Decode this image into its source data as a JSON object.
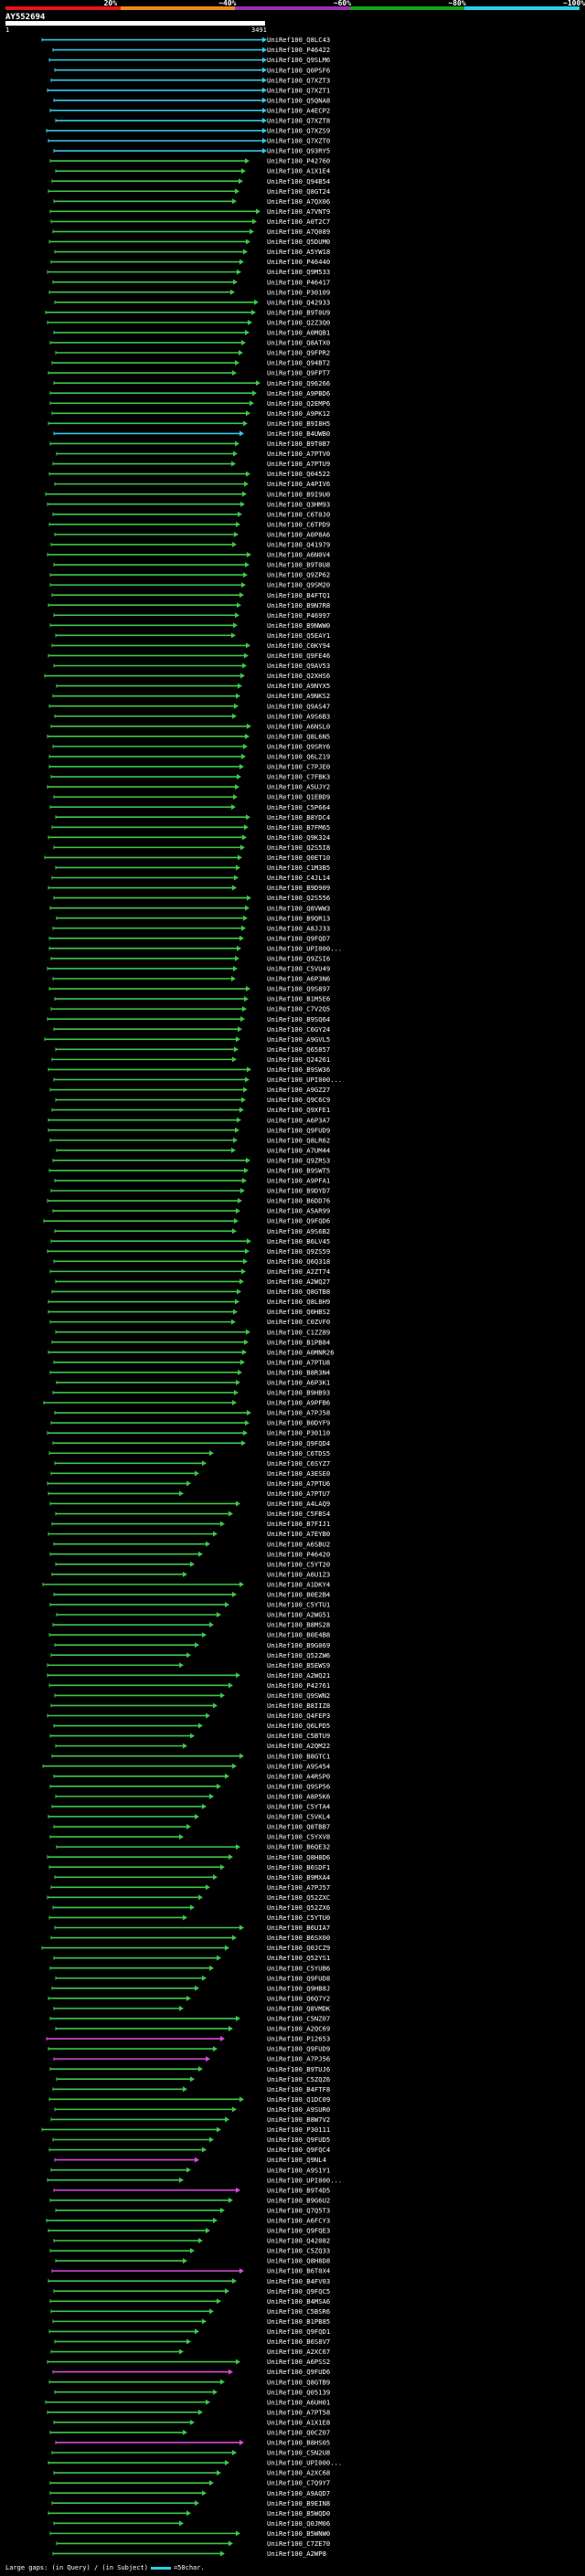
{
  "query": {
    "name": "AY552694",
    "start": "1",
    "end": "3491"
  },
  "legend": [
    {
      "label": "20%",
      "color": "#e8141b"
    },
    {
      "label": "~40%",
      "color": "#e98a1c"
    },
    {
      "label": "~60%",
      "color": "#9b2fb0"
    },
    {
      "label": "~80%",
      "color": "#12a51a"
    },
    {
      "label": "~100%",
      "color": "#29d0e6"
    }
  ],
  "colors": {
    "green": "#3ec74a",
    "cyan": "#37c8e8",
    "magenta": "#d84ad8",
    "query": "#ffffff",
    "bg": "#000000"
  },
  "hits": [
    "UniRef100_Q8LC43",
    "UniRef100_P46422",
    "UniRef100_Q9SLM6",
    "UniRef100_Q0PSF6",
    "UniRef100_Q7XZT3",
    "UniRef100_Q7XZT1",
    "UniRef100_Q5QNA8",
    "UniRef100_A4ECP2",
    "UniRef100_Q7XZT8",
    "UniRef100_Q7XZS9",
    "UniRef100_Q7XZT0",
    "UniRef100_Q93RY5",
    "UniRef100_P42760",
    "UniRef100_A1X1E4",
    "UniRef100_Q94B54",
    "UniRef100_Q8GT24",
    "UniRef100_A7QX06",
    "UniRef100_A7VNT9",
    "UniRef100_A0T2C7",
    "UniRef100_A7Q089",
    "UniRef100_Q5DUM0",
    "UniRef100_A5YW18",
    "UniRef100_P46440",
    "UniRef100_Q9M533",
    "UniRef100_P46417",
    "UniRef100_P30109",
    "UniRef100_Q42933",
    "UniRef100_B9T0U9",
    "UniRef100_Q2Z3Q0",
    "UniRef100_A0MQB1",
    "UniRef100_Q8ATX0",
    "UniRef100_Q9FPR2",
    "UniRef100_Q94BT2",
    "UniRef100_Q9FPT7",
    "UniRef100_Q96266",
    "UniRef100_A9PBD6",
    "UniRef100_Q2EMP6",
    "UniRef100_A9PK12",
    "UniRef100_B9I8H5",
    "UniRef100_B4UWB0",
    "UniRef100_B9T0B7",
    "UniRef100_A7PTV0",
    "UniRef100_A7PTU9",
    "UniRef100_Q04522",
    "UniRef100_A4PIV6",
    "UniRef100_B9I9U0",
    "UniRef100_Q3HM93",
    "UniRef100_C6T0J0",
    "UniRef100_C6TPD9",
    "UniRef100_A0P8A6",
    "UniRef100_Q41979",
    "UniRef100_A6N0V4",
    "UniRef100_B9T0U8",
    "UniRef100_Q9ZP62",
    "UniRef100_Q9SM20",
    "UniRef100_B4FTQ1",
    "UniRef100_B9N7R8",
    "UniRef100_P46997",
    "UniRef100_B9NWW0",
    "UniRef100_Q5EAY1",
    "UniRef100_C0KY94",
    "UniRef100_Q9FE46",
    "UniRef100_Q9AV53",
    "UniRef100_Q2XHS6",
    "UniRef100_A9NYX5",
    "UniRef100_A9NKS2",
    "UniRef100_Q9AS47",
    "UniRef100_A9S6B3",
    "UniRef100_A6NSL0",
    "UniRef100_Q8L6N5",
    "UniRef100_Q9SRY6",
    "UniRef100_Q6LZ19",
    "UniRef100_C7PJE0",
    "UniRef100_C7FBK3",
    "UniRef100_A5UJY2",
    "UniRef100_Q1EBD9",
    "UniRef100_C5P664",
    "UniRef100_B8YDC4",
    "UniRef100_B7FM65",
    "UniRef100_Q9K324",
    "UniRef100_Q2S5I8",
    "UniRef100_Q0ET10",
    "UniRef100_C1M3B5",
    "UniRef100_C4JL14",
    "UniRef100_B9D909",
    "UniRef100_Q2S556",
    "UniRef100_Q8VWW3",
    "UniRef100_B9QR13",
    "UniRef100_A8JJ33",
    "UniRef100_Q9FQD7",
    "UniRef100_UPI000...",
    "UniRef100_Q9ZSI6",
    "UniRef100_C5VU49",
    "UniRef100_A6P3N6",
    "UniRef100_Q9S897",
    "UniRef100_B1M5E6",
    "UniRef100_C7V2Q5",
    "UniRef100_B9SQ64",
    "UniRef100_C6GY24",
    "UniRef100_A9GVL5",
    "UniRef100_Q65857",
    "UniRef100_Q24261",
    "UniRef100_B9SW36",
    "UniRef100_UPI000...",
    "UniRef100_A9GZ27",
    "UniRef100_Q9C6C9",
    "UniRef100_Q9XFE1",
    "UniRef100_A6P3A7",
    "UniRef100_Q9FUD9",
    "UniRef100_Q8LR62",
    "UniRef100_A7UM44",
    "UniRef100_Q9ZRS3",
    "UniRef100_B9SWT5",
    "UniRef100_A9PFA1",
    "UniRef100_B9DYD7",
    "UniRef100_B6DD76",
    "UniRef100_A5AR99",
    "UniRef100_Q9FQD6",
    "UniRef100_A9S6B2",
    "UniRef100_B6LV45",
    "UniRef100_Q9ZS59",
    "UniRef100_Q6Q318",
    "UniRef100_A2ZT74",
    "UniRef100_A2WQ27",
    "UniRef100_Q8GTB8",
    "UniRef100_Q8L8H9",
    "UniRef100_Q0HBS2",
    "UniRef100_C0ZVF0",
    "UniRef100_C1ZZ89",
    "UniRef100_B1PB84",
    "UniRef100_A0MNR26",
    "UniRef100_A7PTU8",
    "UniRef100_B8R3N4",
    "UniRef100_A6P3K1",
    "UniRef100_B9HB93",
    "UniRef100_A9PFB6",
    "UniRef100_A7PJ58",
    "UniRef100_B0DYF9",
    "UniRef100_P30110",
    "UniRef100_Q9FQD4",
    "UniRef100_C6TDS5",
    "UniRef100_C6SYZ7",
    "UniRef100_A3ESE0",
    "UniRef100_A7PTU6",
    "UniRef100_A7PTU7",
    "UniRef100_A4LAQ9",
    "UniRef100_C5FBS4",
    "UniRef100_B7FIJ1",
    "UniRef100_A7EYB0",
    "UniRef100_A6SBU2",
    "UniRef100_P46420",
    "UniRef100_C5YT20",
    "UniRef100_A6U1Z3",
    "UniRef100_A1DKY4",
    "UniRef100_B0E2B4",
    "UniRef100_C5YTU1",
    "UniRef100_A2WG51",
    "UniRef100_B8MS28",
    "UniRef100_B0E4B8",
    "UniRef100_B9G069",
    "UniRef100_Q52ZW6",
    "UniRef100_B5EWS9",
    "UniRef100_A2WQ21",
    "UniRef100_P42761",
    "UniRef100_Q9SWN2",
    "UniRef100_B8IIZ8",
    "UniRef100_Q4FEP3",
    "UniRef100_Q6LPD5",
    "UniRef100_C5BTU9",
    "UniRef100_A2QM22",
    "UniRef100_B8GTC1",
    "UniRef100_A9S454",
    "UniRef100_A4RSP0",
    "UniRef100_Q9SP56",
    "UniRef100_A8P5K6",
    "UniRef100_C5YTA4",
    "UniRef100_C5VKL4",
    "UniRef100_Q8TBB7",
    "UniRef100_C5YXV8",
    "UniRef100_B6QE32",
    "UniRef100_Q8H8D6",
    "UniRef100_B6SDF1",
    "UniRef100_B9MXA4",
    "UniRef100_A7PJ57",
    "UniRef100_Q52ZXC",
    "UniRef100_Q52ZX6",
    "UniRef100_C5YTU0",
    "UniRef100_B6UIA7",
    "UniRef100_B6SX00",
    "UniRef100_Q0JCZ9",
    "UniRef100_Q52YS1",
    "UniRef100_C5YUB6",
    "UniRef100_Q9FUD8",
    "UniRef100_Q9HB8J",
    "UniRef100_Q6Q7Y2",
    "UniRef100_Q8VMDK",
    "UniRef100_C5NZ07",
    "UniRef100_A2QC69",
    "UniRef100_P12653",
    "UniRef100_Q9FUD9",
    "UniRef100_A7PJ56",
    "UniRef100_B9TUJ6",
    "UniRef100_C5ZQZ6",
    "UniRef100_B4FTF8",
    "UniRef100_Q1DC09",
    "UniRef100_A9SUR0",
    "UniRef100_B8W7V2",
    "UniRef100_P30111",
    "UniRef100_Q9FUD5",
    "UniRef100_Q9FQC4",
    "UniRef100_Q9NL4",
    "UniRef100_A9S1Y1",
    "UniRef100_UPI000...",
    "UniRef100_B9T4D5",
    "UniRef100_B9G6U2",
    "UniRef100_Q7Q5T3",
    "UniRef100_A6FCY3",
    "UniRef100_Q9FQE3",
    "UniRef100_Q42082",
    "UniRef100_C5ZQ33",
    "UniRef100_Q8H8D8",
    "UniRef100_B6T0X4",
    "UniRef100_B4FV03",
    "UniRef100_Q9FQC5",
    "UniRef100_B4MSA6",
    "UniRef100_C5BSR6",
    "UniRef100_B1PB85",
    "UniRef100_Q9FQD1",
    "UniRef100_B6S8V7",
    "UniRef100_A2XC67",
    "UniRef100_A6PSS2",
    "UniRef100_Q9FUD6",
    "UniRef100_Q8GTB9",
    "UniRef100_Q05139",
    "UniRef100_A6UH01",
    "UniRef100_A7PT58",
    "UniRef100_A1X1E8",
    "UniRef100_Q0CZ07",
    "UniRef100_B8HS05",
    "UniRef100_C5N2U8",
    "UniRef100_UPI000...",
    "UniRef100_A2XC68",
    "UniRef100_C7Q9Y7",
    "UniRef100_A9AQD7",
    "UniRef100_B9EIN8",
    "UniRef100_B5WQD0",
    "UniRef100_Q0JM06",
    "UniRef100_B5WNW0",
    "UniRef100_C7ZE70",
    "UniRef100_A2WP8"
  ],
  "footer": {
    "text_before": "Large gaps: ",
    "glyph_query": "(in Query)",
    "sep": " / ",
    "glyph_subject": "(in Subject)",
    "scale": "=50char."
  }
}
